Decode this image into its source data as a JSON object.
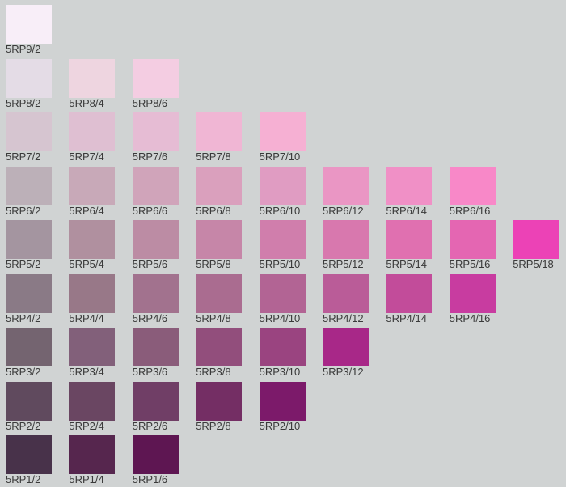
{
  "rows": [
    {
      "swatches": [
        {
          "label": "5RP9/2",
          "color": "#f8eef8"
        }
      ]
    },
    {
      "swatches": [
        {
          "label": "5RP8/2",
          "color": "#e4dce6"
        },
        {
          "label": "5RP8/4",
          "color": "#eed5e0"
        },
        {
          "label": "5RP8/6",
          "color": "#f4cde2"
        }
      ]
    },
    {
      "swatches": [
        {
          "label": "5RP7/2",
          "color": "#d6c5d0"
        },
        {
          "label": "5RP7/4",
          "color": "#dfbfd2"
        },
        {
          "label": "5RP7/6",
          "color": "#e6bcd4"
        },
        {
          "label": "5RP7/8",
          "color": "#f0b6d4"
        },
        {
          "label": "5RP7/10",
          "color": "#f6b0d3"
        }
      ]
    },
    {
      "swatches": [
        {
          "label": "5RP6/2",
          "color": "#bcb0b8"
        },
        {
          "label": "5RP6/4",
          "color": "#c8a9b8"
        },
        {
          "label": "5RP6/6",
          "color": "#d0a4ba"
        },
        {
          "label": "5RP6/8",
          "color": "#daa0bd"
        },
        {
          "label": "5RP6/10",
          "color": "#e09cc2"
        },
        {
          "label": "5RP6/12",
          "color": "#ea96c4"
        },
        {
          "label": "5RP6/14",
          "color": "#f090c6"
        },
        {
          "label": "5RP6/16",
          "color": "#f888c8"
        }
      ]
    },
    {
      "swatches": [
        {
          "label": "5RP5/2",
          "color": "#a495a0"
        },
        {
          "label": "5RP5/4",
          "color": "#b0909f"
        },
        {
          "label": "5RP5/6",
          "color": "#bc8ca4"
        },
        {
          "label": "5RP5/8",
          "color": "#c686a8"
        },
        {
          "label": "5RP5/10",
          "color": "#d07eac"
        },
        {
          "label": "5RP5/12",
          "color": "#d878ae"
        },
        {
          "label": "5RP5/14",
          "color": "#e070b0"
        },
        {
          "label": "5RP5/16",
          "color": "#e466b2"
        },
        {
          "label": "5RP5/18",
          "color": "#ec42b6"
        }
      ]
    },
    {
      "swatches": [
        {
          "label": "5RP4/2",
          "color": "#8a7a86"
        },
        {
          "label": "5RP4/4",
          "color": "#987888"
        },
        {
          "label": "5RP4/6",
          "color": "#a2728e"
        },
        {
          "label": "5RP4/8",
          "color": "#aa6c90"
        },
        {
          "label": "5RP4/10",
          "color": "#b26494"
        },
        {
          "label": "5RP4/12",
          "color": "#ba5c98"
        },
        {
          "label": "5RP4/14",
          "color": "#c24c9a"
        },
        {
          "label": "5RP4/16",
          "color": "#c83ca0"
        }
      ]
    },
    {
      "swatches": [
        {
          "label": "5RP3/2",
          "color": "#746470"
        },
        {
          "label": "5RP3/4",
          "color": "#82607a"
        },
        {
          "label": "5RP3/6",
          "color": "#8a5c7a"
        },
        {
          "label": "5RP3/8",
          "color": "#924e7c"
        },
        {
          "label": "5RP3/10",
          "color": "#9a4480"
        },
        {
          "label": "5RP3/12",
          "color": "#a82888"
        }
      ]
    },
    {
      "swatches": [
        {
          "label": "5RP2/2",
          "color": "#604a5e"
        },
        {
          "label": "5RP2/4",
          "color": "#6a4662"
        },
        {
          "label": "5RP2/6",
          "color": "#703e66"
        },
        {
          "label": "5RP2/8",
          "color": "#742e64"
        },
        {
          "label": "5RP2/10",
          "color": "#7c1a6a"
        }
      ]
    },
    {
      "swatches": [
        {
          "label": "5RP1/2",
          "color": "#48324a"
        },
        {
          "label": "5RP1/4",
          "color": "#56264e"
        },
        {
          "label": "5RP1/6",
          "color": "#5e1652"
        }
      ]
    }
  ]
}
